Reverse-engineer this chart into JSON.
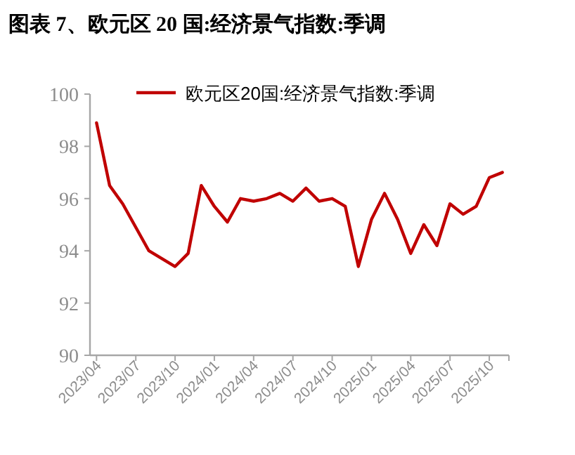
{
  "chart_data": {
    "type": "line",
    "title": "图表 7、欧元区 20 国:经济景气指数:季调",
    "categories": [
      "2023/04",
      null,
      null,
      "2023/07",
      null,
      null,
      "2023/10",
      null,
      null,
      "2024/01",
      null,
      null,
      "2024/04",
      null,
      null,
      "2024/07",
      null,
      null,
      "2024/10",
      null,
      null,
      "2025/01",
      null,
      null,
      "2025/04",
      null,
      null,
      "2025/07",
      null,
      null,
      "2025/10",
      null
    ],
    "series": [
      {
        "name": "欧元区20国:经济景气指数:季调",
        "color": "#c00000",
        "values": [
          98.9,
          96.5,
          95.8,
          94.9,
          94.0,
          93.7,
          93.4,
          93.9,
          96.5,
          95.7,
          95.1,
          96.0,
          95.9,
          96.0,
          96.2,
          95.9,
          96.4,
          95.9,
          96.0,
          95.7,
          93.4,
          95.2,
          96.2,
          95.2,
          93.9,
          95.0,
          94.2,
          95.8,
          95.4,
          95.7,
          96.8,
          97.0
        ]
      }
    ],
    "ylim": [
      90,
      100
    ],
    "yticks": [
      90,
      92,
      94,
      96,
      98,
      100
    ],
    "grid": false,
    "legend": "top",
    "marker": "none",
    "line_style": "solid"
  }
}
